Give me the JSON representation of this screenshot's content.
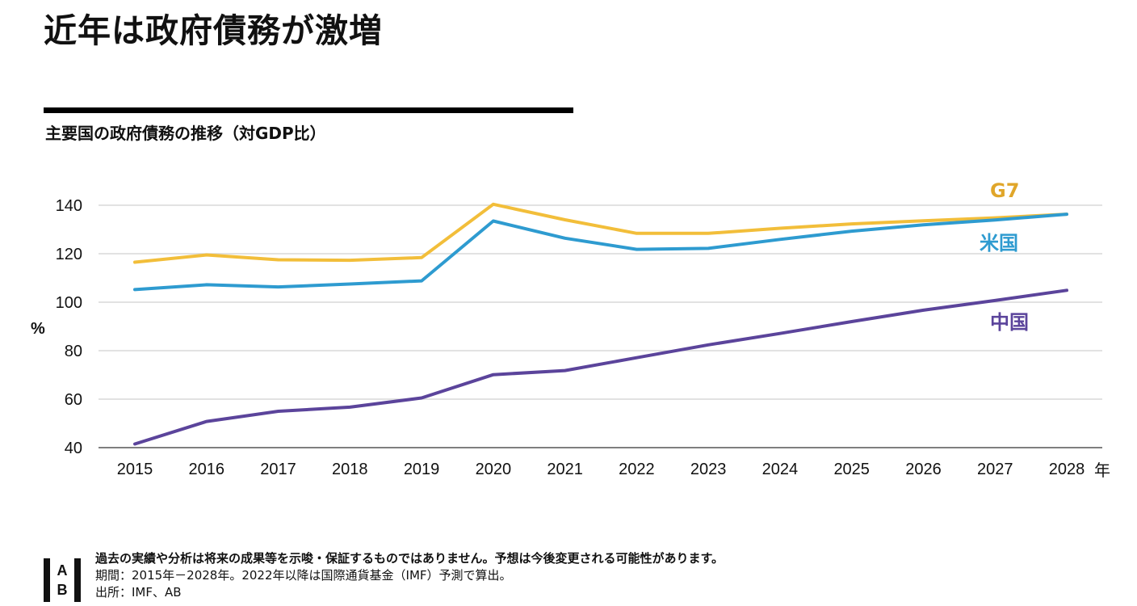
{
  "title": "近年は政府債務が激増",
  "subtitle": "主要国の政府債務の推移（対GDP比）",
  "chart_data": {
    "type": "line",
    "categories": [
      "2015",
      "2016",
      "2017",
      "2018",
      "2019",
      "2020",
      "2021",
      "2022",
      "2023",
      "2024",
      "2025",
      "2026",
      "2027",
      "2028"
    ],
    "x_unit": "年",
    "ylabel": "%",
    "ylim": [
      40,
      140
    ],
    "yticks": [
      140,
      120,
      100,
      80,
      60,
      40
    ],
    "grid": true,
    "series": [
      {
        "name": "G7",
        "color": "#F2BE3A",
        "label_color": "#E0A62A",
        "values": [
          116.5,
          119.5,
          117.5,
          117.3,
          118.4,
          140.4,
          134,
          128.4,
          128.4,
          130.5,
          132.3,
          133.6,
          134.8,
          136.3
        ]
      },
      {
        "name": "米国",
        "color": "#2E9BD0",
        "label_color": "#2E9BD0",
        "values": [
          105.2,
          107.2,
          106.3,
          107.5,
          108.8,
          133.5,
          126.4,
          121.8,
          122.2,
          125.9,
          129.3,
          131.9,
          133.9,
          136.3
        ]
      },
      {
        "name": "中国",
        "color": "#5B449B",
        "label_color": "#5B449B",
        "values": [
          41.5,
          50.8,
          55,
          56.7,
          60.5,
          70.1,
          71.8,
          77.1,
          82.4,
          87.1,
          92,
          96.7,
          100.7,
          104.9
        ]
      }
    ]
  },
  "footer": {
    "line1": "過去の実績や分析は将来の成果等を示唆・保証するものではありません。予想は今後変更される可能性があります。",
    "line2": "期間：2015年－2028年。2022年以降は国際通貨基金（IMF）予測で算出。",
    "line3": "出所：IMF、AB"
  },
  "logo": {
    "top": "A",
    "bottom": "B"
  }
}
